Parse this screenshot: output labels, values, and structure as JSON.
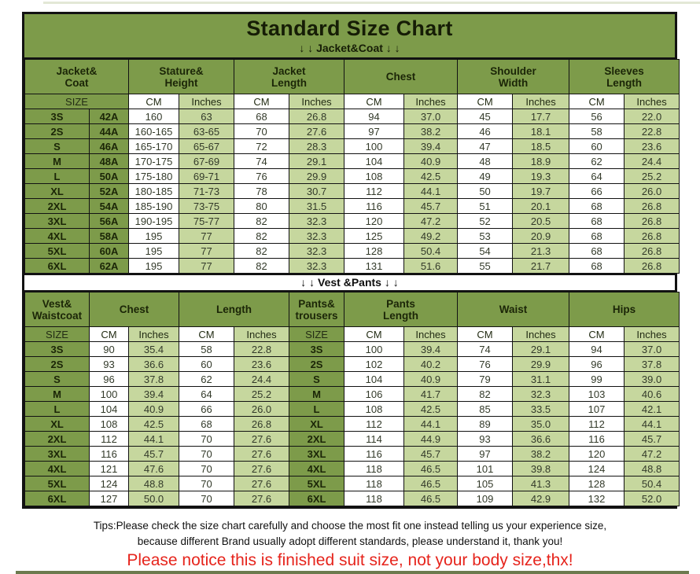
{
  "colors": {
    "olive": "#7d9b4a",
    "light_green": "#c6d79e",
    "red": "#e6241c",
    "border": "#121212"
  },
  "header": {
    "title": "Standard Size Chart",
    "jacket_section_label": "↓ ↓  Jacket&Coat ↓ ↓",
    "vest_section_label": "↓ ↓  Vest &Pants ↓ ↓"
  },
  "labels": {
    "size": "SIZE",
    "cm": "CM",
    "inches": "Inches"
  },
  "jacket_table": {
    "groups": [
      {
        "line1": "Jacket&",
        "line2": "Coat"
      },
      {
        "line1": "Stature&",
        "line2": "Height"
      },
      {
        "line1": "Jacket",
        "line2": "Length"
      },
      {
        "line1": "Chest",
        "line2": ""
      },
      {
        "line1": "Shoulder",
        "line2": "Width"
      },
      {
        "line1": "Sleeves",
        "line2": "Length"
      }
    ],
    "rows": [
      [
        "3S",
        "42A",
        "160",
        "63",
        "68",
        "26.8",
        "94",
        "37.0",
        "45",
        "17.7",
        "56",
        "22.0"
      ],
      [
        "2S",
        "44A",
        "160-165",
        "63-65",
        "70",
        "27.6",
        "97",
        "38.2",
        "46",
        "18.1",
        "58",
        "22.8"
      ],
      [
        "S",
        "46A",
        "165-170",
        "65-67",
        "72",
        "28.3",
        "100",
        "39.4",
        "47",
        "18.5",
        "60",
        "23.6"
      ],
      [
        "M",
        "48A",
        "170-175",
        "67-69",
        "74",
        "29.1",
        "104",
        "40.9",
        "48",
        "18.9",
        "62",
        "24.4"
      ],
      [
        "L",
        "50A",
        "175-180",
        "69-71",
        "76",
        "29.9",
        "108",
        "42.5",
        "49",
        "19.3",
        "64",
        "25.2"
      ],
      [
        "XL",
        "52A",
        "180-185",
        "71-73",
        "78",
        "30.7",
        "112",
        "44.1",
        "50",
        "19.7",
        "66",
        "26.0"
      ],
      [
        "2XL",
        "54A",
        "185-190",
        "73-75",
        "80",
        "31.5",
        "116",
        "45.7",
        "51",
        "20.1",
        "68",
        "26.8"
      ],
      [
        "3XL",
        "56A",
        "190-195",
        "75-77",
        "82",
        "32.3",
        "120",
        "47.2",
        "52",
        "20.5",
        "68",
        "26.8"
      ],
      [
        "4XL",
        "58A",
        "195",
        "77",
        "82",
        "32.3",
        "125",
        "49.2",
        "53",
        "20.9",
        "68",
        "26.8"
      ],
      [
        "5XL",
        "60A",
        "195",
        "77",
        "82",
        "32.3",
        "128",
        "50.4",
        "54",
        "21.3",
        "68",
        "26.8"
      ],
      [
        "6XL",
        "62A",
        "195",
        "77",
        "82",
        "32.3",
        "131",
        "51.6",
        "55",
        "21.7",
        "68",
        "26.8"
      ]
    ]
  },
  "vest_table": {
    "groups": [
      {
        "line1": "Vest&",
        "line2": "Waistcoat"
      },
      {
        "line1": "Chest",
        "line2": ""
      },
      {
        "line1": "Length",
        "line2": ""
      },
      {
        "line1": "Pants&",
        "line2": "trousers"
      },
      {
        "line1": "Pants",
        "line2": "Length"
      },
      {
        "line1": "Waist",
        "line2": ""
      },
      {
        "line1": "Hips",
        "line2": ""
      }
    ],
    "rows": [
      [
        "3S",
        "90",
        "35.4",
        "58",
        "22.8",
        "3S",
        "100",
        "39.4",
        "74",
        "29.1",
        "94",
        "37.0"
      ],
      [
        "2S",
        "93",
        "36.6",
        "60",
        "23.6",
        "2S",
        "102",
        "40.2",
        "76",
        "29.9",
        "96",
        "37.8"
      ],
      [
        "S",
        "96",
        "37.8",
        "62",
        "24.4",
        "S",
        "104",
        "40.9",
        "79",
        "31.1",
        "99",
        "39.0"
      ],
      [
        "M",
        "100",
        "39.4",
        "64",
        "25.2",
        "M",
        "106",
        "41.7",
        "82",
        "32.3",
        "103",
        "40.6"
      ],
      [
        "L",
        "104",
        "40.9",
        "66",
        "26.0",
        "L",
        "108",
        "42.5",
        "85",
        "33.5",
        "107",
        "42.1"
      ],
      [
        "XL",
        "108",
        "42.5",
        "68",
        "26.8",
        "XL",
        "112",
        "44.1",
        "89",
        "35.0",
        "112",
        "44.1"
      ],
      [
        "2XL",
        "112",
        "44.1",
        "70",
        "27.6",
        "2XL",
        "114",
        "44.9",
        "93",
        "36.6",
        "116",
        "45.7"
      ],
      [
        "3XL",
        "116",
        "45.7",
        "70",
        "27.6",
        "3XL",
        "116",
        "45.7",
        "97",
        "38.2",
        "120",
        "47.2"
      ],
      [
        "4XL",
        "121",
        "47.6",
        "70",
        "27.6",
        "4XL",
        "118",
        "46.5",
        "101",
        "39.8",
        "124",
        "48.8"
      ],
      [
        "5XL",
        "124",
        "48.8",
        "70",
        "27.6",
        "5XL",
        "118",
        "46.5",
        "105",
        "41.3",
        "128",
        "50.4"
      ],
      [
        "6XL",
        "127",
        "50.0",
        "70",
        "27.6",
        "6XL",
        "118",
        "46.5",
        "109",
        "42.9",
        "132",
        "52.0"
      ]
    ]
  },
  "footer": {
    "tips_line1": "Tips:Please check the size chart carefully and choose the most fit one instead telling us your experience size,",
    "tips_line2": "because different Brand usually adopt different standards, please understand it, thank you!",
    "notice": "Please notice this is finished suit size, not your body size,thx!"
  }
}
